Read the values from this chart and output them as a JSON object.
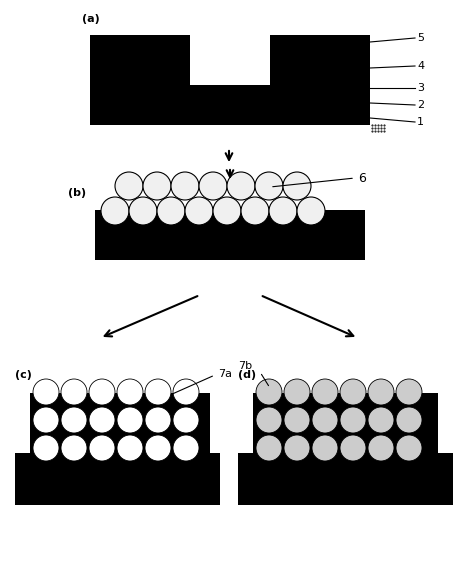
{
  "bg_color": "#ffffff",
  "black": "#000000",
  "white": "#ffffff",
  "circle_fill": "#f0f0f0",
  "dark_dot_fill": "#cccccc",
  "figure_size": [
    4.58,
    5.64
  ],
  "dpi": 100,
  "panel_labels": {
    "a": "(a)",
    "b": "(b)",
    "c": "(c)",
    "d": "(d)"
  },
  "layer_labels": [
    "1",
    "2",
    "3",
    "4",
    "5"
  ],
  "label_6": "6",
  "label_7a": "7a",
  "label_7b": "7b"
}
